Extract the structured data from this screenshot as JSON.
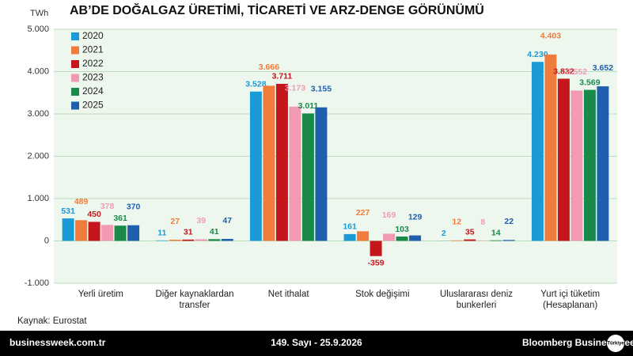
{
  "chart_data": {
    "type": "bar",
    "title": "AB’DE DOĞALGAZ ÜRETİMİ, TİCARETİ VE ARZ-DENGE GÖRÜNÜMÜ",
    "y_label": "TWh",
    "source": "Kaynak: Eurostat",
    "categories": [
      "Yerli üretim",
      "Diğer kaynaklardan transfer",
      "Net ithalat",
      "Stok değişimi",
      "Uluslararası deniz bunkerleri",
      "Yurt içi tüketim (Hesaplanan)"
    ],
    "series": [
      {
        "name": "2020",
        "color": "#1a9ad6",
        "values": [
          531,
          11,
          3528,
          161,
          2,
          4230
        ],
        "value_labels": [
          "531",
          "11",
          "3.528",
          "161",
          "2",
          "4.230"
        ]
      },
      {
        "name": "2021",
        "color": "#f07c3c",
        "values": [
          489,
          27,
          3666,
          227,
          12,
          4403
        ],
        "value_labels": [
          "489",
          "27",
          "3.666",
          "227",
          "12",
          "4.403"
        ]
      },
      {
        "name": "2022",
        "color": "#c4161c",
        "values": [
          450,
          31,
          3711,
          -359,
          35,
          3832
        ],
        "value_labels": [
          "450",
          "31",
          "3.711",
          "-359",
          "35",
          "3.832"
        ]
      },
      {
        "name": "2023",
        "color": "#f29ab4",
        "values": [
          378,
          39,
          3173,
          169,
          8,
          3552
        ],
        "value_labels": [
          "378",
          "39",
          "3.173",
          "169",
          "8",
          "3.552"
        ]
      },
      {
        "name": "2024",
        "color": "#1a8a4a",
        "values": [
          361,
          41,
          3011,
          103,
          14,
          3569
        ],
        "value_labels": [
          "361",
          "41",
          "3.011",
          "103",
          "14",
          "3.569"
        ]
      },
      {
        "name": "2025",
        "color": "#1f5fae",
        "values": [
          370,
          47,
          3155,
          129,
          22,
          3652
        ],
        "value_labels": [
          "370",
          "47",
          "3.155",
          "129",
          "22",
          "3.652"
        ]
      }
    ],
    "ylim": [
      -1000,
      5000
    ],
    "yticks": [
      {
        "value": -1000,
        "label": "-1.000"
      },
      0,
      {
        "value": 1000,
        "label": "1.000"
      },
      {
        "value": 2000,
        "label": "2.000"
      },
      {
        "value": 3000,
        "label": "3.000"
      },
      {
        "value": 4000,
        "label": "4.000"
      },
      {
        "value": 5000,
        "label": "5.000"
      }
    ],
    "grid": true,
    "legend": "top-left"
  },
  "footer": {
    "site": "businessweek.com.tr",
    "issue": "149. Sayı - 25.9.2026",
    "logo": "Bloomberg Businessweek",
    "edition": "Türkiye"
  }
}
